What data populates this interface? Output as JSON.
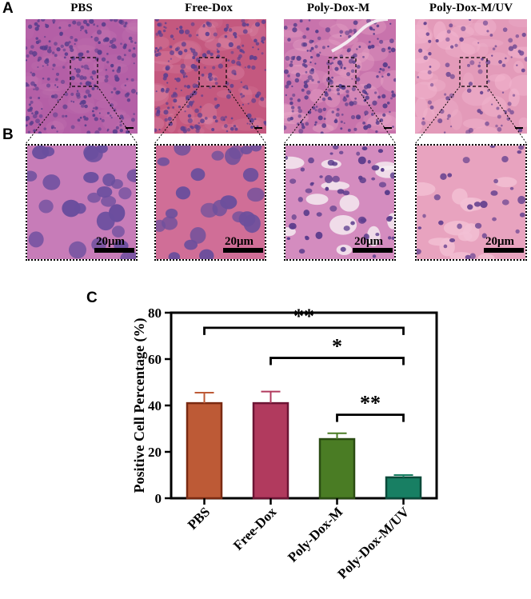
{
  "panels": {
    "a": "A",
    "b": "B",
    "c": "C"
  },
  "groups": [
    "PBS",
    "Free-Dox",
    "Poly-Dox-M",
    "Poly-Dox-M/UV"
  ],
  "scale_label": "20μm",
  "colors": {
    "tissue_dense": "#b35fa8",
    "tissue_light": "#e595b8",
    "nuclei": "#5b3f8f",
    "bars": [
      "#bd5a36",
      "#b13a5e",
      "#4a7c24",
      "#187f63"
    ],
    "bar_edges": [
      "#7a2a12",
      "#6c1434",
      "#2a4c12",
      "#0b4a3a"
    ]
  },
  "chart_data": {
    "type": "bar",
    "categories": [
      "PBS",
      "Free-Dox",
      "Poly-Dox-M",
      "Poly-Dox-M/UV"
    ],
    "values": [
      41,
      41,
      25.5,
      9
    ],
    "errors": [
      4.5,
      5,
      2.5,
      1
    ],
    "ylabel": "Positive Cell Percentage (%)",
    "ylim": [
      0,
      80
    ],
    "yticks": [
      0,
      20,
      40,
      60,
      80
    ],
    "significance": [
      {
        "from": "PBS",
        "to": "Poly-Dox-M/UV",
        "label": "**"
      },
      {
        "from": "Free-Dox",
        "to": "Poly-Dox-M/UV",
        "label": "*"
      },
      {
        "from": "Poly-Dox-M",
        "to": "Poly-Dox-M/UV",
        "label": "**"
      }
    ]
  }
}
